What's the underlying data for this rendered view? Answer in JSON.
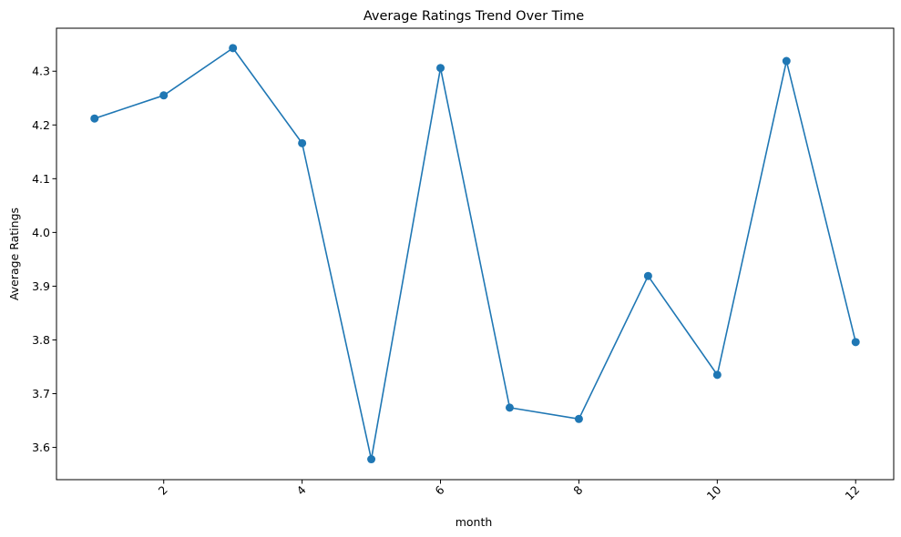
{
  "chart_data": {
    "type": "line",
    "title": "Average Ratings Trend Over Time",
    "xlabel": "month",
    "ylabel": "Average Ratings",
    "x": [
      1,
      2,
      3,
      4,
      5,
      6,
      7,
      8,
      9,
      10,
      11,
      12
    ],
    "series": [
      {
        "values": [
          4.212,
          4.255,
          4.343,
          4.166,
          3.578,
          4.306,
          3.674,
          3.653,
          3.919,
          3.735,
          4.319,
          3.796
        ],
        "color": "#1f77b4",
        "marker": "circle"
      }
    ],
    "xlim": [
      0.45,
      12.55
    ],
    "ylim": [
      3.54,
      4.38
    ],
    "xticks": [
      2,
      4,
      6,
      8,
      10,
      12
    ],
    "xtick_labels": [
      "2",
      "4",
      "6",
      "8",
      "10",
      "12"
    ],
    "xtick_rotation": 45,
    "yticks": [
      3.6,
      3.7,
      3.8,
      3.9,
      4.0,
      4.1,
      4.2,
      4.3
    ],
    "ytick_labels": [
      "3.6",
      "3.7",
      "3.8",
      "3.9",
      "4.0",
      "4.1",
      "4.2",
      "4.3"
    ],
    "grid": false,
    "legend": "none"
  }
}
